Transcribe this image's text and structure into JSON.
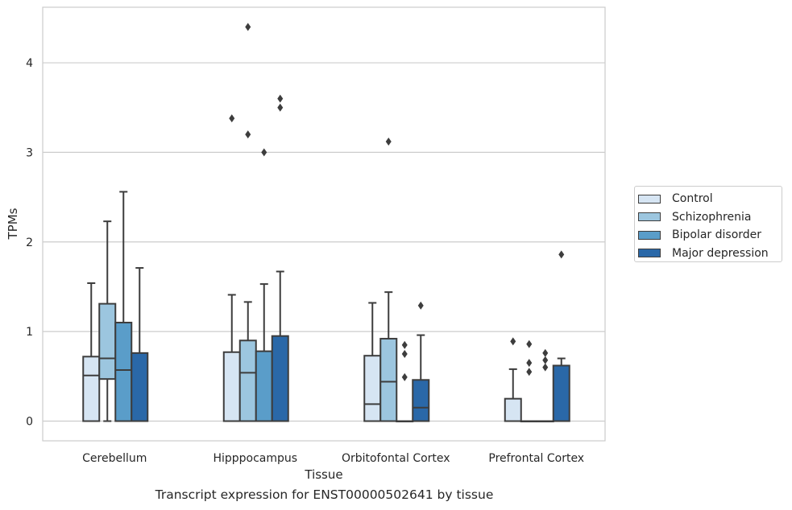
{
  "chart_data": {
    "type": "box",
    "title": "",
    "caption": "Transcript expression for ENST00000502641 by tissue",
    "xlabel": "Tissue",
    "ylabel": "TPMs",
    "ylim": [
      -0.22,
      4.62
    ],
    "yticks": [
      "0",
      "1",
      "2",
      "3",
      "4"
    ],
    "grid": "horizontal",
    "legend_position": "center-right",
    "categories": [
      "Cerebellum",
      "Hipppocampus",
      "Orbitofontal Cortex",
      "Prefrontal Cortex"
    ],
    "series": [
      {
        "name": "Control",
        "color": "#d6e5f3",
        "boxes": [
          {
            "q1": 0,
            "median": 0.51,
            "q3": 0.72,
            "whisker_low": 0,
            "whisker_high": 1.54,
            "outliers": []
          },
          {
            "q1": 0,
            "median": 0,
            "q3": 0.77,
            "whisker_low": 0,
            "whisker_high": 1.41,
            "outliers": [
              3.38
            ]
          },
          {
            "q1": 0,
            "median": 0.19,
            "q3": 0.73,
            "whisker_low": 0,
            "whisker_high": 1.32,
            "outliers": []
          },
          {
            "q1": 0,
            "median": 0,
            "q3": 0.25,
            "whisker_low": 0,
            "whisker_high": 0.58,
            "outliers": [
              0.89
            ]
          }
        ]
      },
      {
        "name": "Schizophrenia",
        "color": "#9cc6df",
        "boxes": [
          {
            "q1": 0.47,
            "median": 0.7,
            "q3": 1.31,
            "whisker_low": 0,
            "whisker_high": 2.23,
            "outliers": []
          },
          {
            "q1": 0,
            "median": 0.54,
            "q3": 0.9,
            "whisker_low": 0,
            "whisker_high": 1.33,
            "outliers": [
              4.4,
              3.2
            ]
          },
          {
            "q1": 0,
            "median": 0.44,
            "q3": 0.92,
            "whisker_low": 0,
            "whisker_high": 1.44,
            "outliers": [
              3.12
            ]
          },
          {
            "q1": 0,
            "median": 0,
            "q3": 0,
            "whisker_low": 0,
            "whisker_high": 0,
            "outliers": [
              0.86,
              0.65,
              0.55
            ]
          }
        ]
      },
      {
        "name": "Bipolar disorder",
        "color": "#5a9dc9",
        "boxes": [
          {
            "q1": 0,
            "median": 0.57,
            "q3": 1.1,
            "whisker_low": 0,
            "whisker_high": 2.56,
            "outliers": []
          },
          {
            "q1": 0,
            "median": 0,
            "q3": 0.78,
            "whisker_low": 0,
            "whisker_high": 1.53,
            "outliers": [
              3.0
            ]
          },
          {
            "q1": 0,
            "median": 0,
            "q3": 0,
            "whisker_low": 0,
            "whisker_high": 0,
            "outliers": [
              0.85,
              0.75,
              0.49
            ]
          },
          {
            "q1": 0,
            "median": 0,
            "q3": 0,
            "whisker_low": 0,
            "whisker_high": 0,
            "outliers": [
              0.76,
              0.68,
              0.6
            ]
          }
        ]
      },
      {
        "name": "Major depression",
        "color": "#2a68a8",
        "boxes": [
          {
            "q1": 0,
            "median": 0,
            "q3": 0.76,
            "whisker_low": 0,
            "whisker_high": 1.71,
            "outliers": []
          },
          {
            "q1": 0,
            "median": 0,
            "q3": 0.95,
            "whisker_low": 0,
            "whisker_high": 1.67,
            "outliers": [
              3.6,
              3.5
            ]
          },
          {
            "q1": 0,
            "median": 0.15,
            "q3": 0.46,
            "whisker_low": 0,
            "whisker_high": 0.96,
            "outliers": [
              1.29
            ]
          },
          {
            "q1": 0,
            "median": 0,
            "q3": 0.62,
            "whisker_low": 0,
            "whisker_high": 0.7,
            "outliers": [
              1.86
            ]
          }
        ]
      }
    ]
  }
}
